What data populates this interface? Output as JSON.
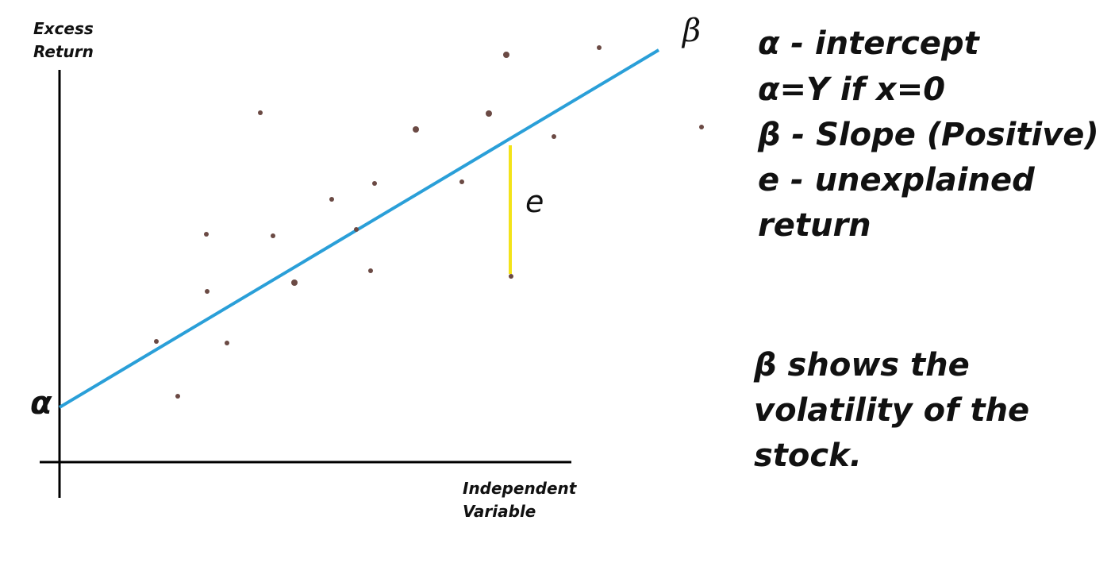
{
  "diagram": {
    "y_axis_label": [
      "Excess",
      "Return"
    ],
    "x_axis_label": [
      "Independent",
      "Variable"
    ],
    "intercept_symbol": "α",
    "slope_symbol": "β",
    "error_symbol": "e",
    "definitions": [
      "α - intercept",
      "α=Y if x=0",
      "β - Slope (Positive)",
      "e - unexplained",
      "return"
    ],
    "statement": [
      "β shows the",
      "volatility of the",
      "stock."
    ]
  }
}
